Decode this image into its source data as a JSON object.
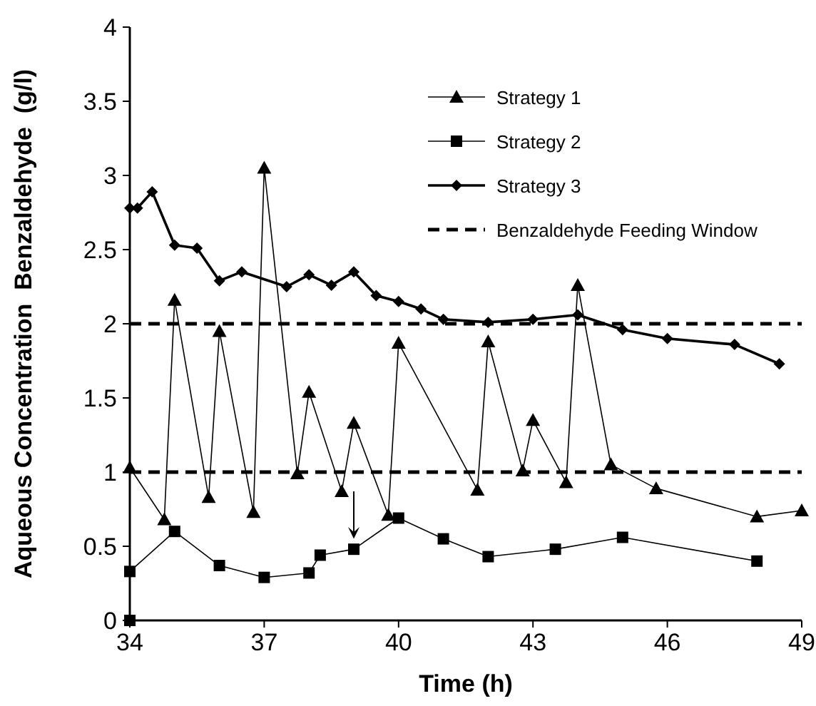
{
  "chart_data": {
    "type": "line",
    "xlabel": "Time (h)",
    "ylabel": "Aqueous Concentration  Benzaldehyde  (g/l)",
    "xlim": [
      34,
      49
    ],
    "xticks": [
      34,
      37,
      40,
      43,
      46,
      49
    ],
    "ylim": [
      0,
      4
    ],
    "yticks": [
      0,
      0.5,
      1,
      1.5,
      2,
      2.5,
      3,
      3.5,
      4
    ],
    "grid": false,
    "legend": "top right",
    "line_style": "solid",
    "series": [
      {
        "name": "Strategy 1",
        "color": "#000000",
        "marker": "triangle",
        "x": [
          34,
          34.77,
          35,
          35.76,
          36,
          36.76,
          37,
          37.74,
          38,
          38.73,
          39,
          39.77,
          40,
          41.76,
          42,
          42.77,
          43,
          43.74,
          44,
          44.74,
          45.75,
          48,
          49
        ],
        "values": [
          1.03,
          0.68,
          2.16,
          0.83,
          1.95,
          0.73,
          3.05,
          0.99,
          1.54,
          0.87,
          1.33,
          0.71,
          1.87,
          0.88,
          1.88,
          1.01,
          1.35,
          0.93,
          2.26,
          1.05,
          0.89,
          0.7,
          0.74
        ]
      },
      {
        "name": "Strategy 2",
        "color": "#000000",
        "marker": "square",
        "x": [
          34,
          34,
          35,
          36,
          37,
          38,
          38.25,
          39,
          40,
          41,
          42,
          43.5,
          45,
          48
        ],
        "values": [
          0,
          0.33,
          0.6,
          0.37,
          0.29,
          0.32,
          0.44,
          0.48,
          0.69,
          0.55,
          0.43,
          0.48,
          0.56,
          0.4
        ]
      },
      {
        "name": "Strategy 3",
        "color": "#000000",
        "marker": "diamond",
        "x": [
          34,
          34.17,
          34.5,
          35,
          35.5,
          36,
          36.5,
          37.5,
          38,
          38.5,
          39,
          39.5,
          40,
          40.5,
          41,
          42,
          43,
          44,
          45,
          46,
          47.5,
          48.5
        ],
        "values": [
          2.78,
          2.78,
          2.89,
          2.53,
          2.51,
          2.29,
          2.35,
          2.25,
          2.33,
          2.26,
          2.35,
          2.19,
          2.15,
          2.1,
          2.03,
          2.01,
          2.03,
          2.06,
          1.96,
          1.9,
          1.86,
          1.73
        ]
      }
    ],
    "ref_lines": [
      {
        "axis": "y",
        "value": 2,
        "label": "Benzaldehyde Feeding Window",
        "color": "#000000",
        "line_style": "dashed"
      },
      {
        "axis": "y",
        "value": 1,
        "color": "#000000",
        "line_style": "dashed"
      }
    ]
  }
}
